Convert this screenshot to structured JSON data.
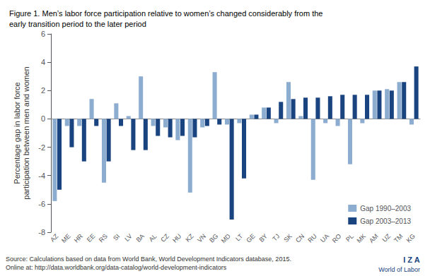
{
  "chart_data": {
    "type": "bar",
    "title": "Figure 1. Men’s labor force participation relative to women’s changed considerably from the\nearly transition period to the later period",
    "ylabel": "Percentage gap in labor force\nparticipation between men and women",
    "categories": [
      "AZ",
      "ME",
      "HR",
      "EE",
      "RS",
      "SI",
      "LV",
      "BA",
      "AL",
      "CZ",
      "HU",
      "KZ",
      "VN",
      "BG",
      "MD",
      "LT",
      "GE",
      "BY",
      "TJ",
      "SK",
      "CN",
      "RU",
      "UA",
      "RO",
      "PL",
      "MK",
      "AM",
      "UZ",
      "TM",
      "KG"
    ],
    "series": [
      {
        "name": "Gap 1990–2003",
        "color": "#8dadd0",
        "values": [
          -5.8,
          -0.5,
          -0.5,
          1.4,
          -4.5,
          1.1,
          0.2,
          3.0,
          -0.5,
          -0.6,
          -1.5,
          -5.2,
          -0.6,
          3.3,
          -0.4,
          -0.3,
          0.3,
          0.8,
          -0.3,
          2.6,
          0.2,
          -4.3,
          -0.3,
          -0.5,
          -3.2,
          -0.3,
          2.0,
          2.1,
          2.6,
          -0.4
        ]
      },
      {
        "name": "Gap 2003–2013",
        "color": "#1a4480",
        "values": [
          -5.0,
          -2.0,
          -3.0,
          -0.5,
          -3.0,
          -0.5,
          -2.2,
          -2.2,
          -1.2,
          -1.3,
          -1.2,
          -1.3,
          -0.5,
          -0.4,
          -7.1,
          -4.2,
          0.3,
          0.8,
          1.2,
          1.4,
          1.5,
          1.5,
          1.6,
          1.7,
          1.7,
          1.7,
          2.0,
          2.0,
          2.6,
          3.7
        ]
      }
    ],
    "ylim": [
      -8,
      6
    ],
    "yticks": [
      -8,
      -6,
      -4,
      -2,
      0,
      2,
      4,
      6
    ],
    "grid": false,
    "legend": "lower right",
    "annotations": [
      "Source: Calculations based on data from World Bank, World Development Indicators database, 2015.\nOnline at: http://data.worldbank.org/data-catalog/world-development-indicators",
      "I Z A",
      "World of Labor"
    ]
  }
}
